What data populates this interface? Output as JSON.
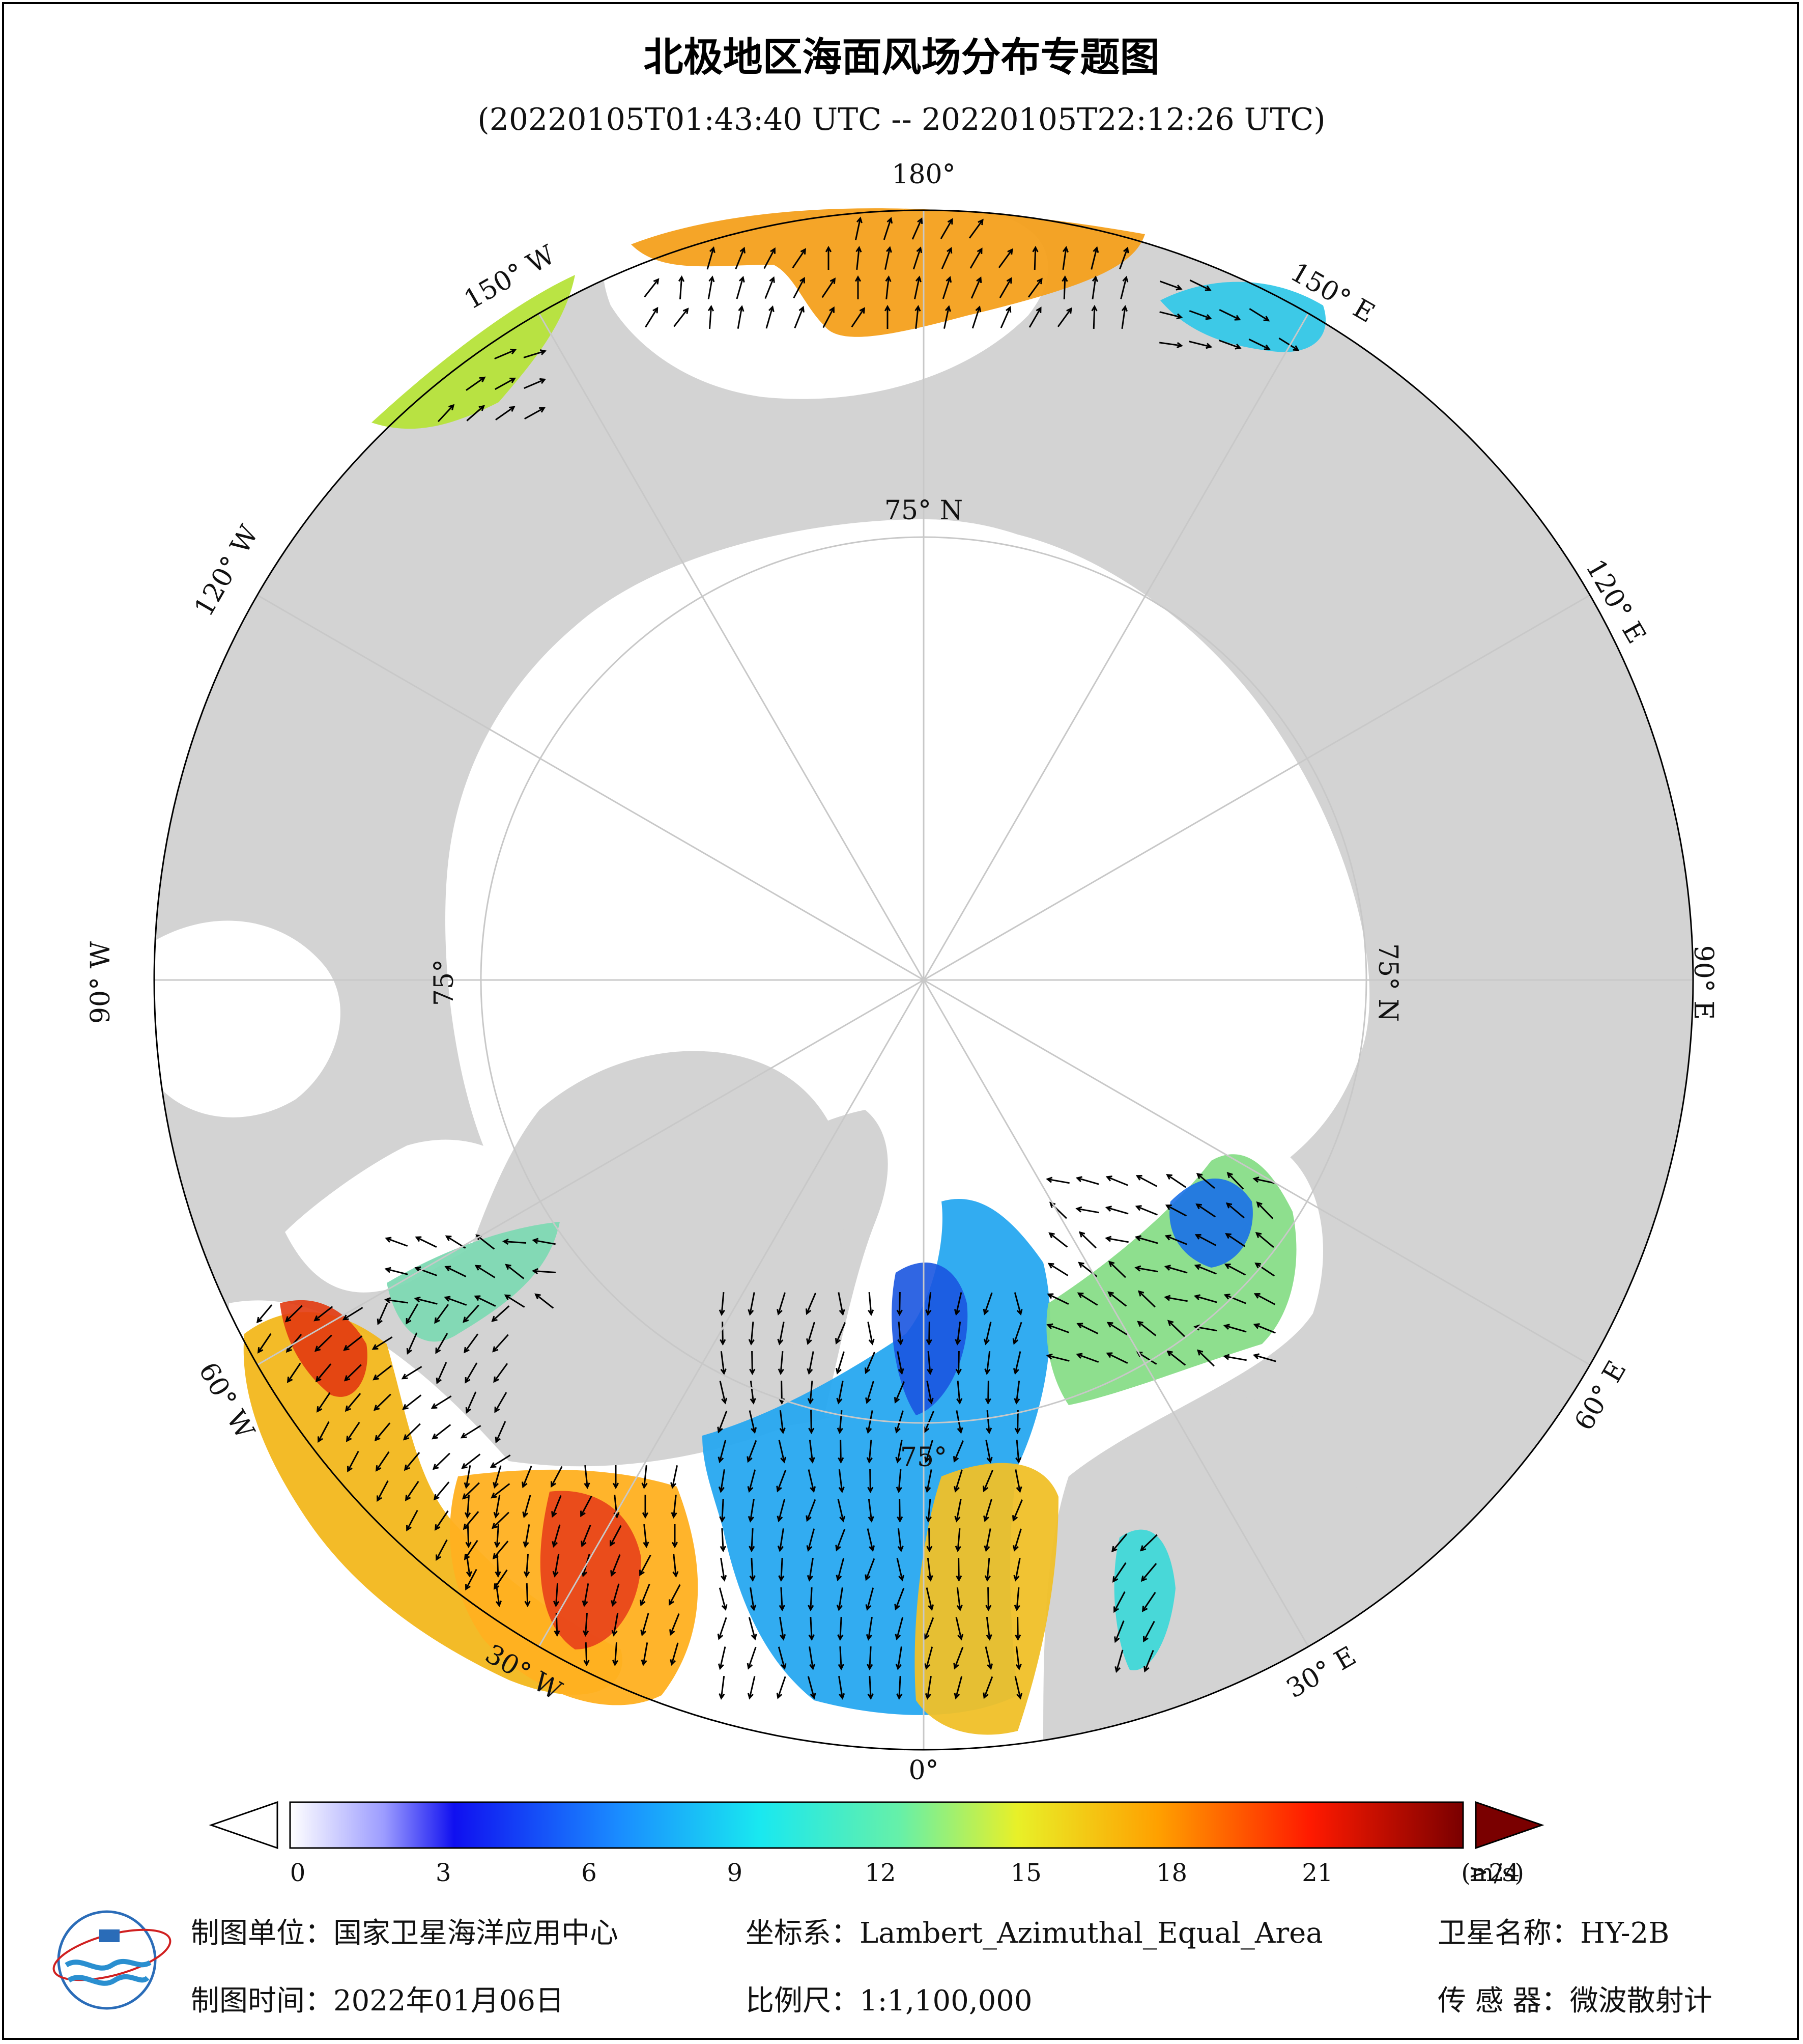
{
  "title": "北极地区海面风场分布专题图",
  "subtitle": "(20220105T01:43:40 UTC -- 20220105T22:12:26 UTC)",
  "map": {
    "projection_center": "North Pole",
    "meridian_labels": [
      "180°",
      "150° W",
      "120° W",
      "90° W",
      "60° W",
      "30° W",
      "0°",
      "30° E",
      "60° E",
      "90° E",
      "120° E",
      "150° E"
    ],
    "parallel_labels": [
      "75° N",
      "75° N",
      "75°",
      "75°"
    ],
    "colors": {
      "land": "#d3d3d3",
      "ice_ocean": "#ffffff",
      "grid": "#cccccc",
      "arrow": "#000000"
    }
  },
  "colorbar": {
    "unit": "(m/s)",
    "ticks": [
      "0",
      "3",
      "6",
      "9",
      "12",
      "15",
      "18",
      "21",
      "≥24"
    ],
    "min": 0,
    "max": 24
  },
  "footer": {
    "unit_label": "制图单位：",
    "unit_value": "国家卫星海洋应用中心",
    "date_label": "制图时间：",
    "date_value": "2022年01月06日",
    "coord_label": "坐标系：",
    "coord_value": "Lambert_Azimuthal_Equal_Area",
    "scale_label": "比例尺：",
    "scale_value": "1:1,100,000",
    "satellite_label": "卫星名称：",
    "satellite_value": "HY-2B",
    "sensor_label": "传 感 器：",
    "sensor_value": "微波散射计"
  }
}
